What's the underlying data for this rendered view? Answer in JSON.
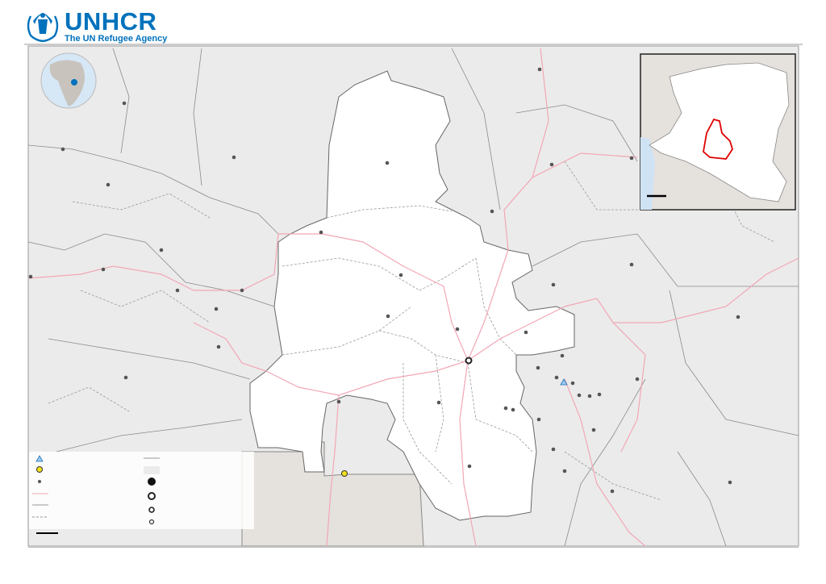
{
  "logo": {
    "name": "UNHCR",
    "tagline": "The UN Refugee Agency",
    "color": "#0072bc"
  },
  "map": {
    "colors": {
      "focus_region": "#ffffff",
      "surrounding": "#ebebeb",
      "neighbor_country": "#e5e1dd",
      "roads": "#f2a7b5",
      "boundaries": "#8a8a8a",
      "settlements": "#555555",
      "inset_highlight": "#e00000",
      "water": "#cfe3f5"
    },
    "legend_symbols": [
      "refugee-camp-triangle-icon",
      "border-crossing-yellow-circle-icon",
      "settlement-dot-icon",
      "road-line",
      "boundary-line",
      "secondary-boundary-dashed-line",
      "capital-filled-circle",
      "city-large-ring",
      "city-medium-ring",
      "city-small-ring"
    ]
  }
}
